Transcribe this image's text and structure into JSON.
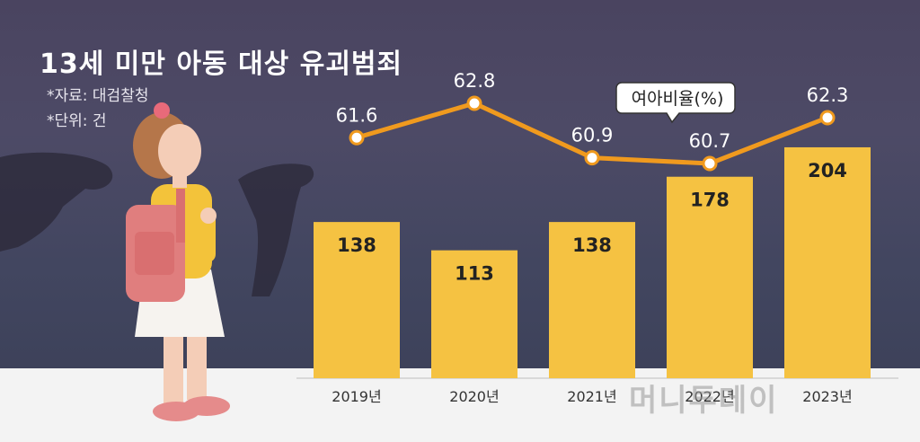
{
  "title": "13세 미만 아동 대상 유괴범죄",
  "source_note": "*자료: 대검찰청",
  "unit_note": "*단위: 건",
  "watermark": "머니투데이",
  "chart_data": {
    "type": "bar",
    "categories": [
      "2019년",
      "2020년",
      "2021년",
      "2022년",
      "2023년"
    ],
    "series": [
      {
        "values": [
          138,
          113,
          138,
          178,
          204
        ],
        "color": "#f5c242"
      },
      {
        "name": "여아비율(%)",
        "type": "line",
        "values": [
          61.6,
          62.8,
          60.9,
          60.7,
          62.3
        ],
        "color": "#f09a1e"
      }
    ],
    "legend": "여아비율(%)"
  }
}
